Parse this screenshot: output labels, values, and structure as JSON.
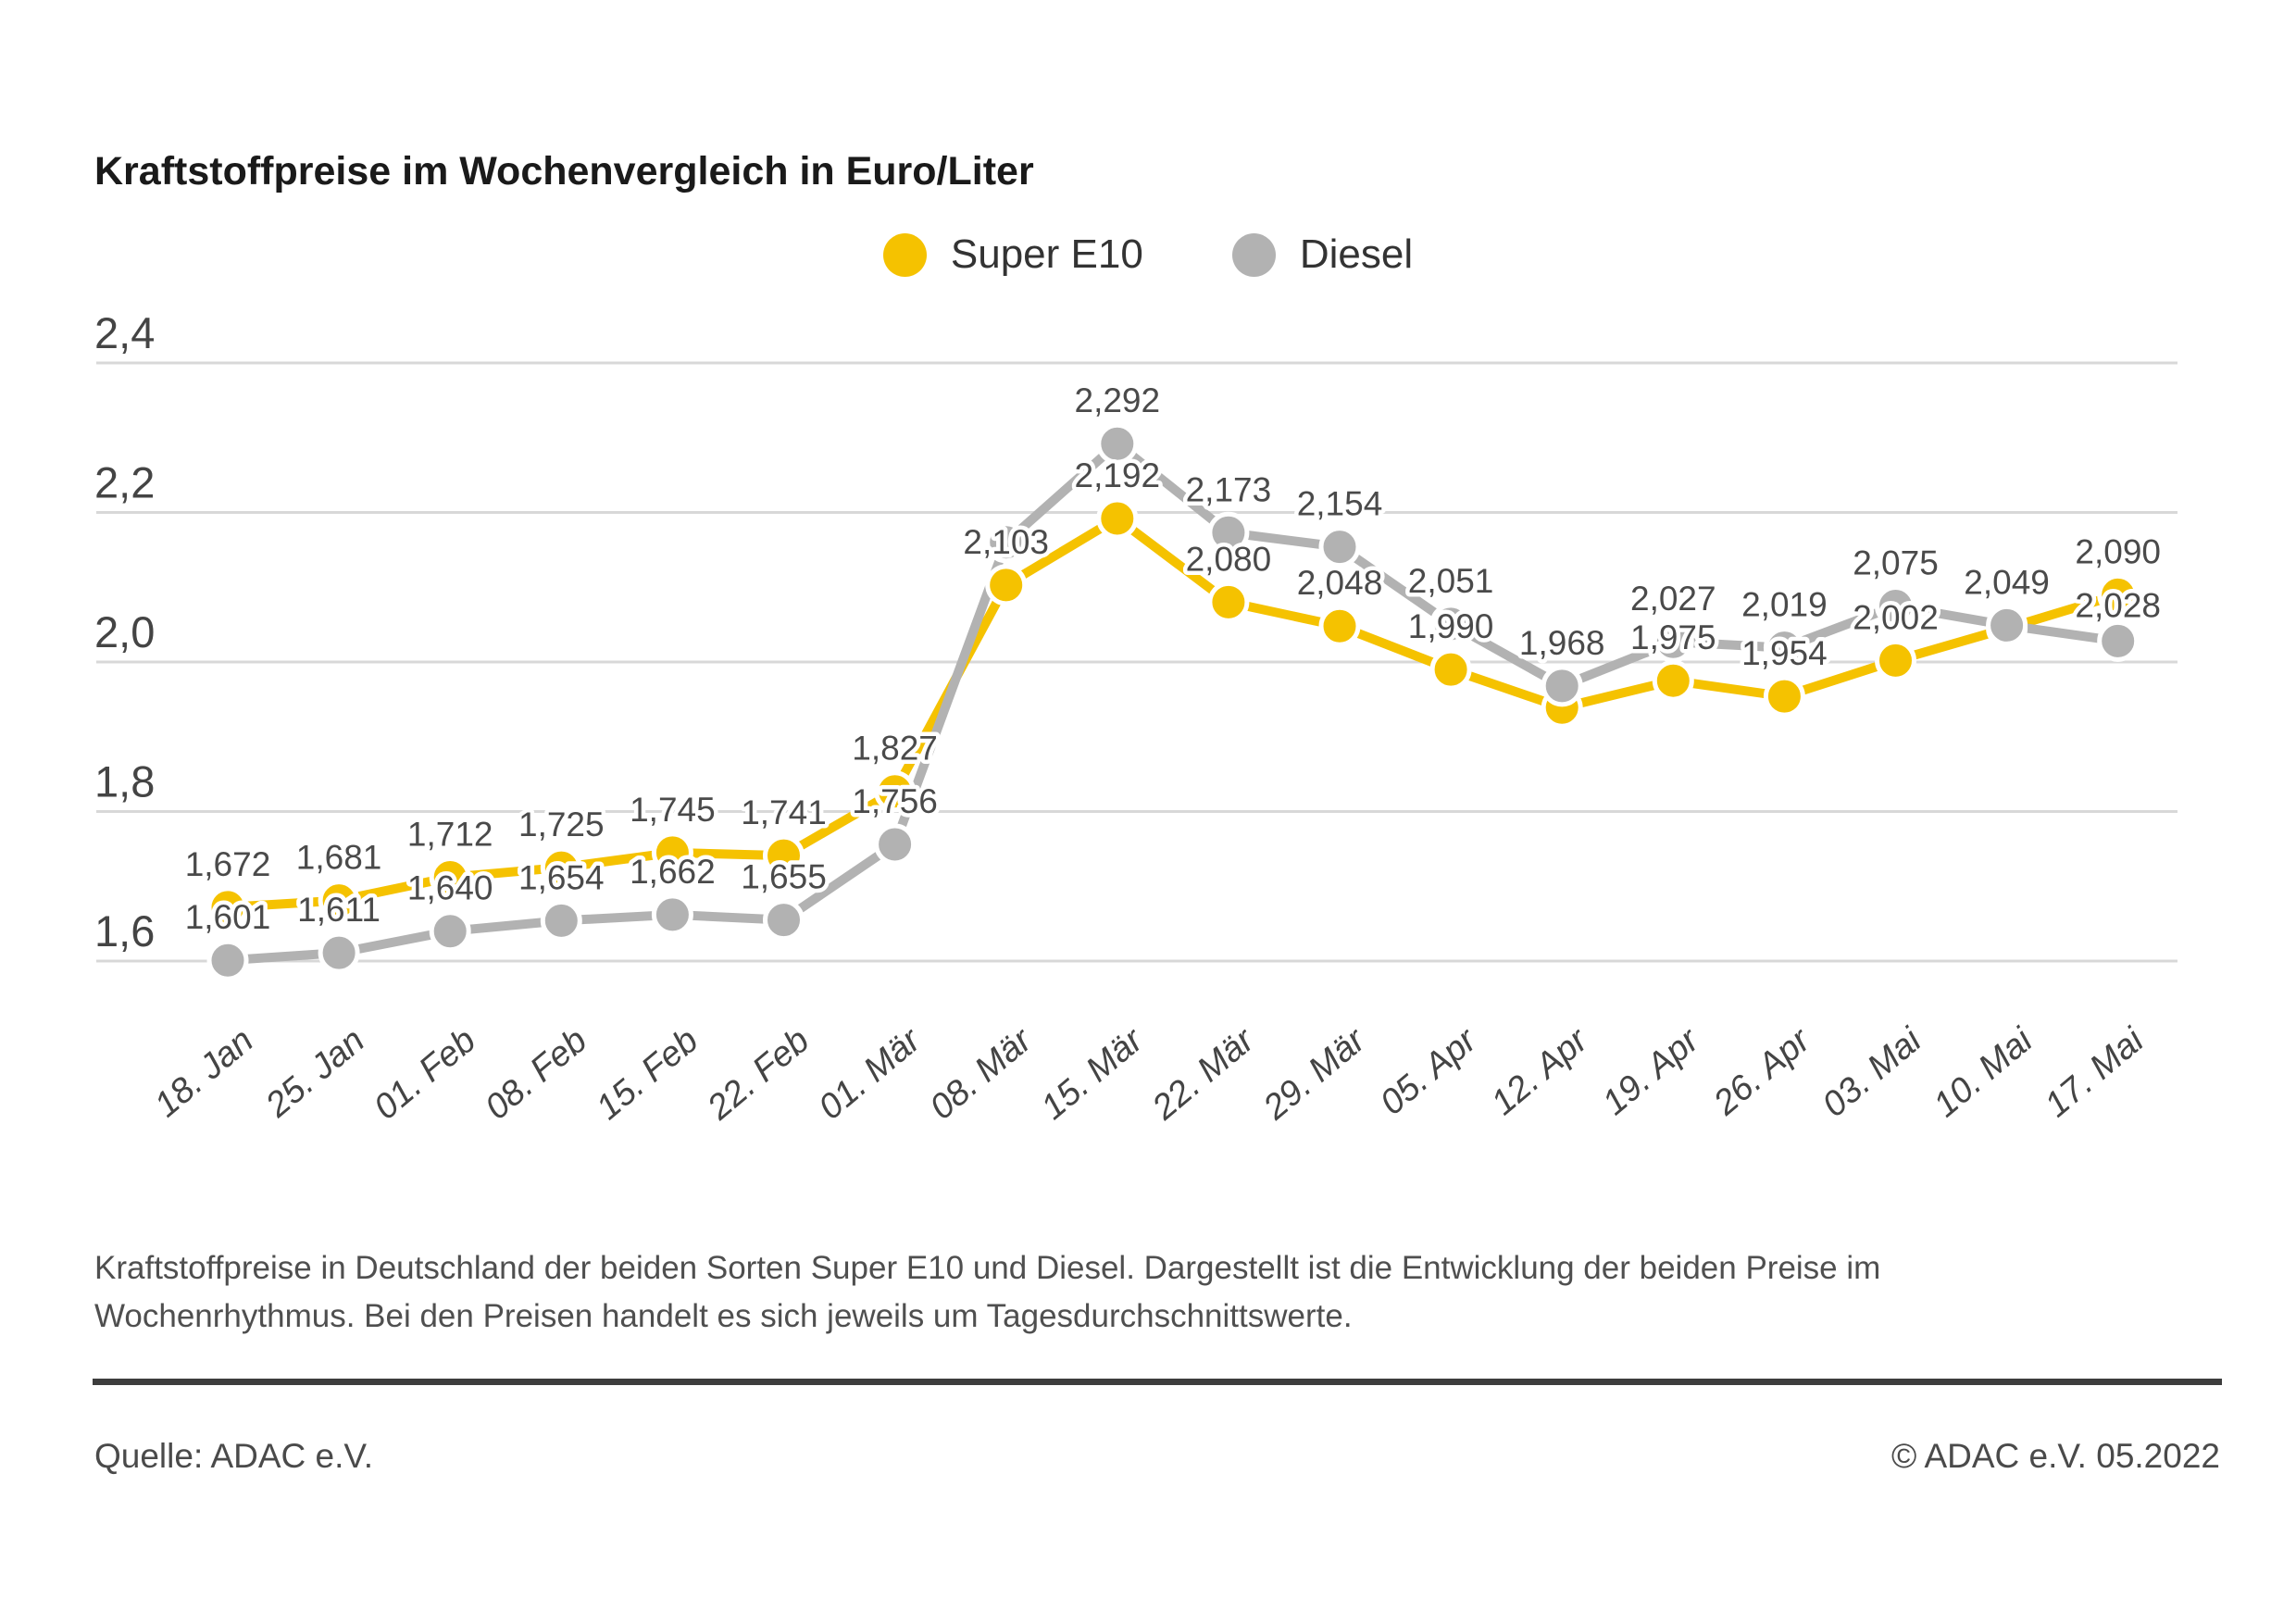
{
  "title": "Kraftstoffpreise im Wochenvergleich in Euro/Liter",
  "legend": {
    "items": [
      {
        "label": "Super E10",
        "color": "#F5C200"
      },
      {
        "label": "Diesel",
        "color": "#B2B2B2"
      }
    ]
  },
  "chart_data": {
    "type": "line",
    "unit": "Euro/Liter",
    "x_labels": [
      "18. Jan",
      "25. Jan",
      "01. Feb",
      "08. Feb",
      "15. Feb",
      "22. Feb",
      "01. Mär",
      "08. Mär",
      "15. Mär",
      "22. Mär",
      "29. Mär",
      "05. Apr",
      "12. Apr",
      "19. Apr",
      "26. Apr",
      "03. Mai",
      "10. Mai",
      "17. Mai"
    ],
    "y_ticks": [
      {
        "label": "2,4",
        "value": 2.4
      },
      {
        "label": "2,2",
        "value": 2.2
      },
      {
        "label": "2,0",
        "value": 2.0
      },
      {
        "label": "1,8",
        "value": 1.8
      },
      {
        "label": "1,6",
        "value": 1.6
      }
    ],
    "ylim": [
      1.55,
      2.45
    ],
    "grid": true,
    "legend_position": "top-center",
    "series": [
      {
        "name": "Super E10",
        "color": "#F5C200",
        "values": [
          1.672,
          1.681,
          1.712,
          1.725,
          1.745,
          1.741,
          1.827,
          2.103,
          2.192,
          2.08,
          2.048,
          1.99,
          1.939,
          1.975,
          1.954,
          2.002,
          2.045,
          2.09
        ],
        "point_labels": [
          "1,672",
          "1,681",
          "1,712",
          "1,725",
          "1,745",
          "1,741",
          "1,827",
          "2,103",
          "2,192",
          "2,080",
          "2,048",
          "1,990",
          "",
          "1,975",
          "1,954",
          "2,002",
          "",
          "2,090"
        ]
      },
      {
        "name": "Diesel",
        "color": "#B2B2B2",
        "values": [
          1.601,
          1.611,
          1.64,
          1.654,
          1.662,
          1.655,
          1.756,
          2.16,
          2.292,
          2.173,
          2.154,
          2.051,
          1.968,
          2.027,
          2.019,
          2.075,
          2.049,
          2.028
        ],
        "point_labels": [
          "1,601",
          "1,611",
          "1,640",
          "1,654",
          "1,662",
          "1,655",
          "1,756",
          "",
          "2,292",
          "2,173",
          "2,154",
          "2,051",
          "1,968",
          "2,027",
          "2,019",
          "2,075",
          "2,049",
          "2,028"
        ]
      }
    ]
  },
  "caption_lines": [
    "Kraftstoffpreise in Deutschland der beiden Sorten Super E10 und Diesel. Dargestellt ist die Entwicklung der beiden Preise im",
    "Wochenrhythmus. Bei den Preisen handelt es sich jeweils um Tagesdurchschnittswerte."
  ],
  "footer": {
    "source": "Quelle: ADAC e.V.",
    "copyright": "© ADAC e.V. 05.2022"
  },
  "colors": {
    "super_e10": "#F5C200",
    "diesel": "#B2B2B2",
    "gridline": "#D8D8D8",
    "axis_text": "#444444",
    "data_label_text": "#4A4A4A",
    "title_text": "#1A1A1A",
    "rule": "#3D3D3D"
  }
}
